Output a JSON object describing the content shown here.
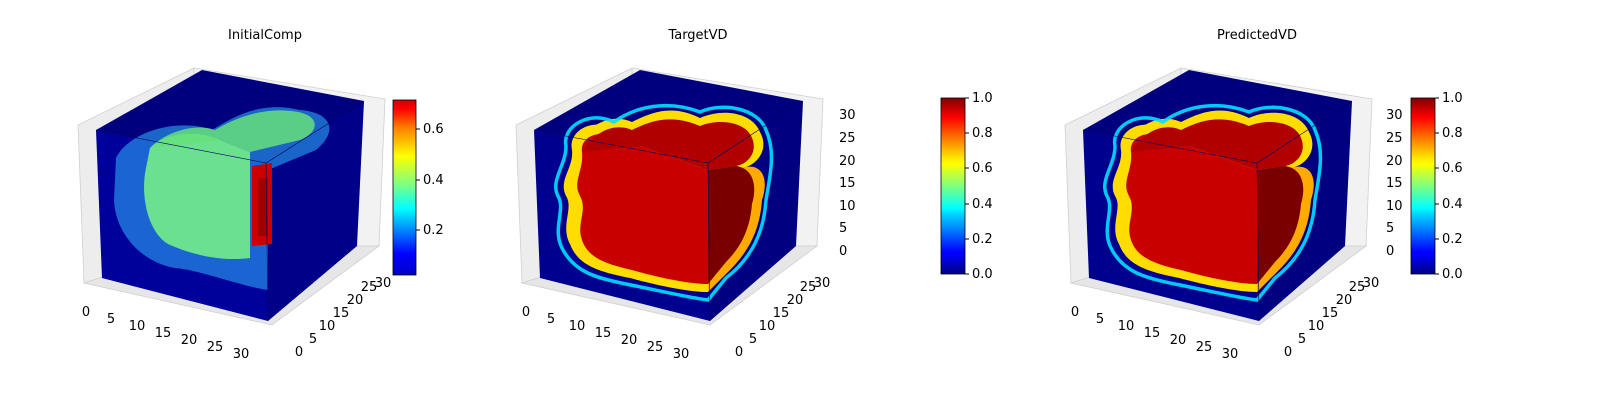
{
  "chart_data": [
    {
      "type": "heatmap",
      "subtype": "3d-voxel",
      "title": "InitialComp",
      "x_ticks": [
        "0",
        "5",
        "10",
        "15",
        "20",
        "25",
        "30"
      ],
      "y_ticks": [
        "0",
        "5",
        "10",
        "15",
        "20",
        "25",
        "30"
      ],
      "z_ticks": [],
      "xlim": [
        0,
        32
      ],
      "ylim": [
        0,
        32
      ],
      "zlim": [
        0,
        32
      ],
      "grid": true,
      "colormap": "jet",
      "colorbar": {
        "min": 0.03,
        "max": 0.72,
        "ticks": [
          "0.2",
          "0.4",
          "0.6"
        ],
        "tick_values": [
          0.2,
          0.4,
          0.6
        ]
      },
      "field": {
        "kind": "initial",
        "front_value": 0.48,
        "side_high_value": 0.72,
        "background": 0.03
      }
    },
    {
      "type": "heatmap",
      "subtype": "3d-voxel",
      "title": "TargetVD",
      "x_ticks": [
        "0",
        "5",
        "10",
        "15",
        "20",
        "25",
        "30"
      ],
      "y_ticks": [
        "0",
        "5",
        "10",
        "15",
        "20",
        "25",
        "30"
      ],
      "z_ticks": [
        "0",
        "5",
        "10",
        "15",
        "20",
        "25",
        "30"
      ],
      "xlim": [
        0,
        32
      ],
      "ylim": [
        0,
        32
      ],
      "zlim": [
        0,
        32
      ],
      "grid": true,
      "colormap": "jet",
      "colorbar": {
        "min": 0.0,
        "max": 1.0,
        "ticks": [
          "0.0",
          "0.2",
          "0.4",
          "0.6",
          "0.8",
          "1.0"
        ],
        "tick_values": [
          0.0,
          0.2,
          0.4,
          0.6,
          0.8,
          1.0
        ]
      },
      "field": {
        "kind": "blob",
        "inside_value": 1.0,
        "background": 0.0
      }
    },
    {
      "type": "heatmap",
      "subtype": "3d-voxel",
      "title": "PredictedVD",
      "x_ticks": [
        "0",
        "5",
        "10",
        "15",
        "20",
        "25",
        "30"
      ],
      "y_ticks": [
        "0",
        "5",
        "10",
        "15",
        "20",
        "25",
        "30"
      ],
      "z_ticks": [
        "0",
        "5",
        "10",
        "15",
        "20",
        "25",
        "30"
      ],
      "xlim": [
        0,
        32
      ],
      "ylim": [
        0,
        32
      ],
      "zlim": [
        0,
        32
      ],
      "grid": true,
      "colormap": "jet",
      "colorbar": {
        "min": 0.0,
        "max": 1.0,
        "ticks": [
          "0.0",
          "0.2",
          "0.4",
          "0.6",
          "0.8",
          "1.0"
        ],
        "tick_values": [
          0.0,
          0.2,
          0.4,
          0.6,
          0.8,
          1.0
        ]
      },
      "field": {
        "kind": "blob",
        "inside_value": 1.0,
        "background": 0.0
      }
    }
  ]
}
